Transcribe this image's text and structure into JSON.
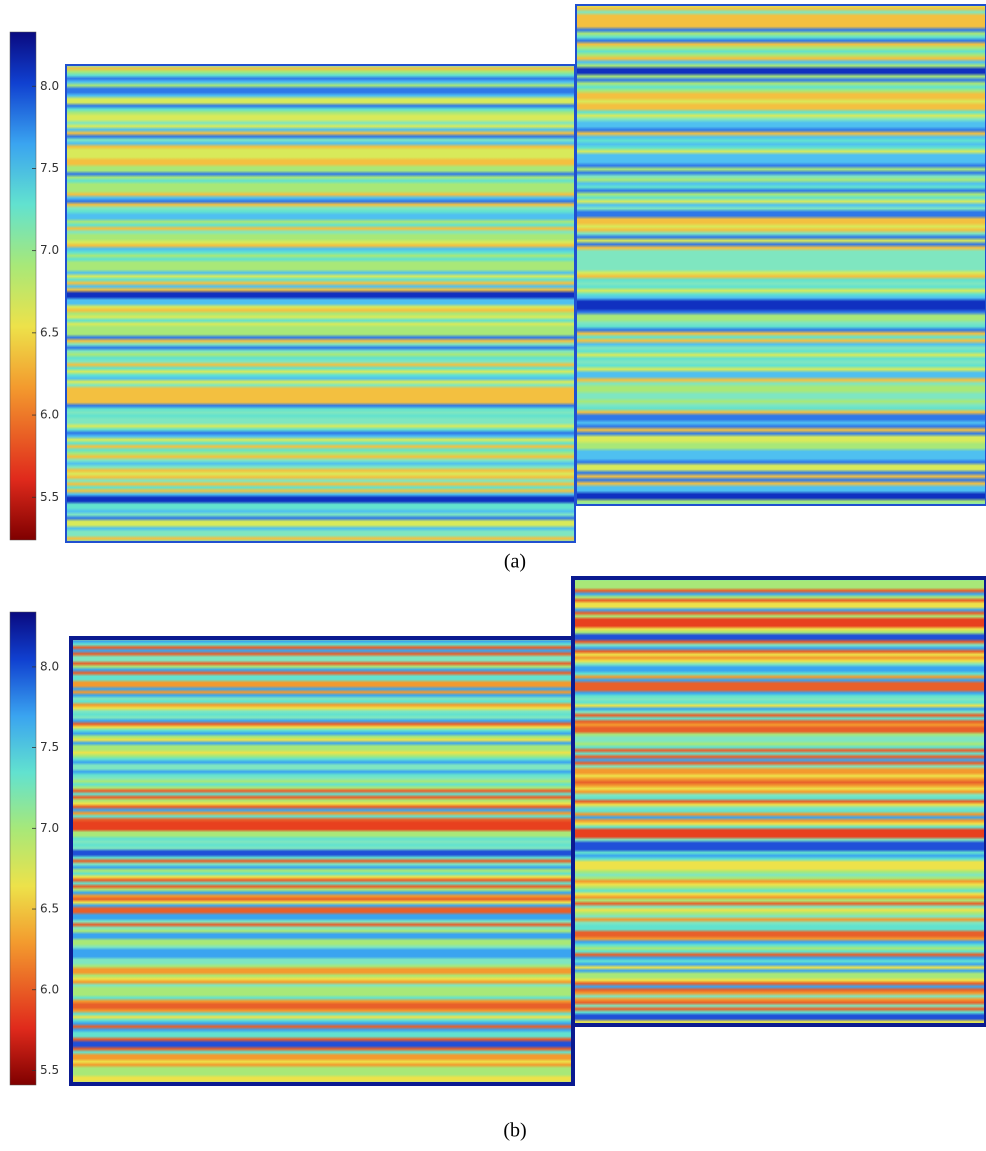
{
  "chart_data": [
    {
      "type": "heatmap",
      "caption": "(a)",
      "colormap": "jet_r",
      "clim": [
        5.24,
        8.33
      ],
      "colorbar_ticks": [
        {
          "value": 8.0,
          "label": "8.0"
        },
        {
          "value": 7.5,
          "label": "7.5"
        },
        {
          "value": 7.0,
          "label": "7.0"
        },
        {
          "value": 6.5,
          "label": "6.5"
        },
        {
          "value": 6.0,
          "label": "6.0"
        },
        {
          "value": 5.5,
          "label": "5.5"
        }
      ]
    },
    {
      "type": "heatmap",
      "caption": "(b)",
      "colormap": "jet_r",
      "clim": [
        5.41,
        8.34
      ],
      "colorbar_ticks": [
        {
          "value": 8.0,
          "label": "8.0"
        },
        {
          "value": 7.5,
          "label": "7.5"
        },
        {
          "value": 7.0,
          "label": "7.0"
        },
        {
          "value": 6.5,
          "label": "6.5"
        },
        {
          "value": 6.0,
          "label": "6.0"
        },
        {
          "value": 5.5,
          "label": "5.5"
        }
      ]
    }
  ]
}
